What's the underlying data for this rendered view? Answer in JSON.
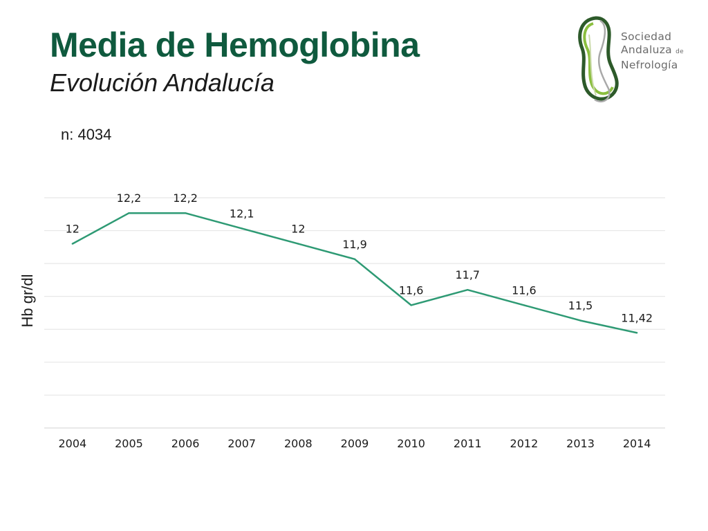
{
  "header": {
    "title": "Media de Hemoglobina",
    "subtitle": "Evolución Andalucía",
    "sample_size": "n: 4034"
  },
  "logo": {
    "line1": "Sociedad",
    "line2": "Andaluza",
    "line2_small": "de",
    "line3": "Nefrología",
    "icon": "kidney-swirl-icon",
    "colors": {
      "dark": "#2d5a2a",
      "light": "#8bbf3f"
    }
  },
  "chart_data": {
    "type": "line",
    "categories": [
      "2004",
      "2005",
      "2006",
      "2007",
      "2008",
      "2009",
      "2010",
      "2011",
      "2012",
      "2013",
      "2014"
    ],
    "series": [
      {
        "values": [
          12,
          12.2,
          12.2,
          12.1,
          12,
          11.9,
          11.6,
          11.7,
          11.6,
          11.5,
          11.42
        ],
        "labels": [
          "12",
          "12,2",
          "12,2",
          "12,1",
          "12",
          "11,9",
          "11,6",
          "11,7",
          "11,6",
          "11,5",
          "11,42"
        ],
        "color": "#2e9a74"
      }
    ],
    "xlabel": "",
    "ylabel": "Hb gr/dl",
    "ylim": [
      10.8,
      12.3
    ],
    "grid": true,
    "y_tick_labels_visible": false,
    "legend": "none"
  }
}
